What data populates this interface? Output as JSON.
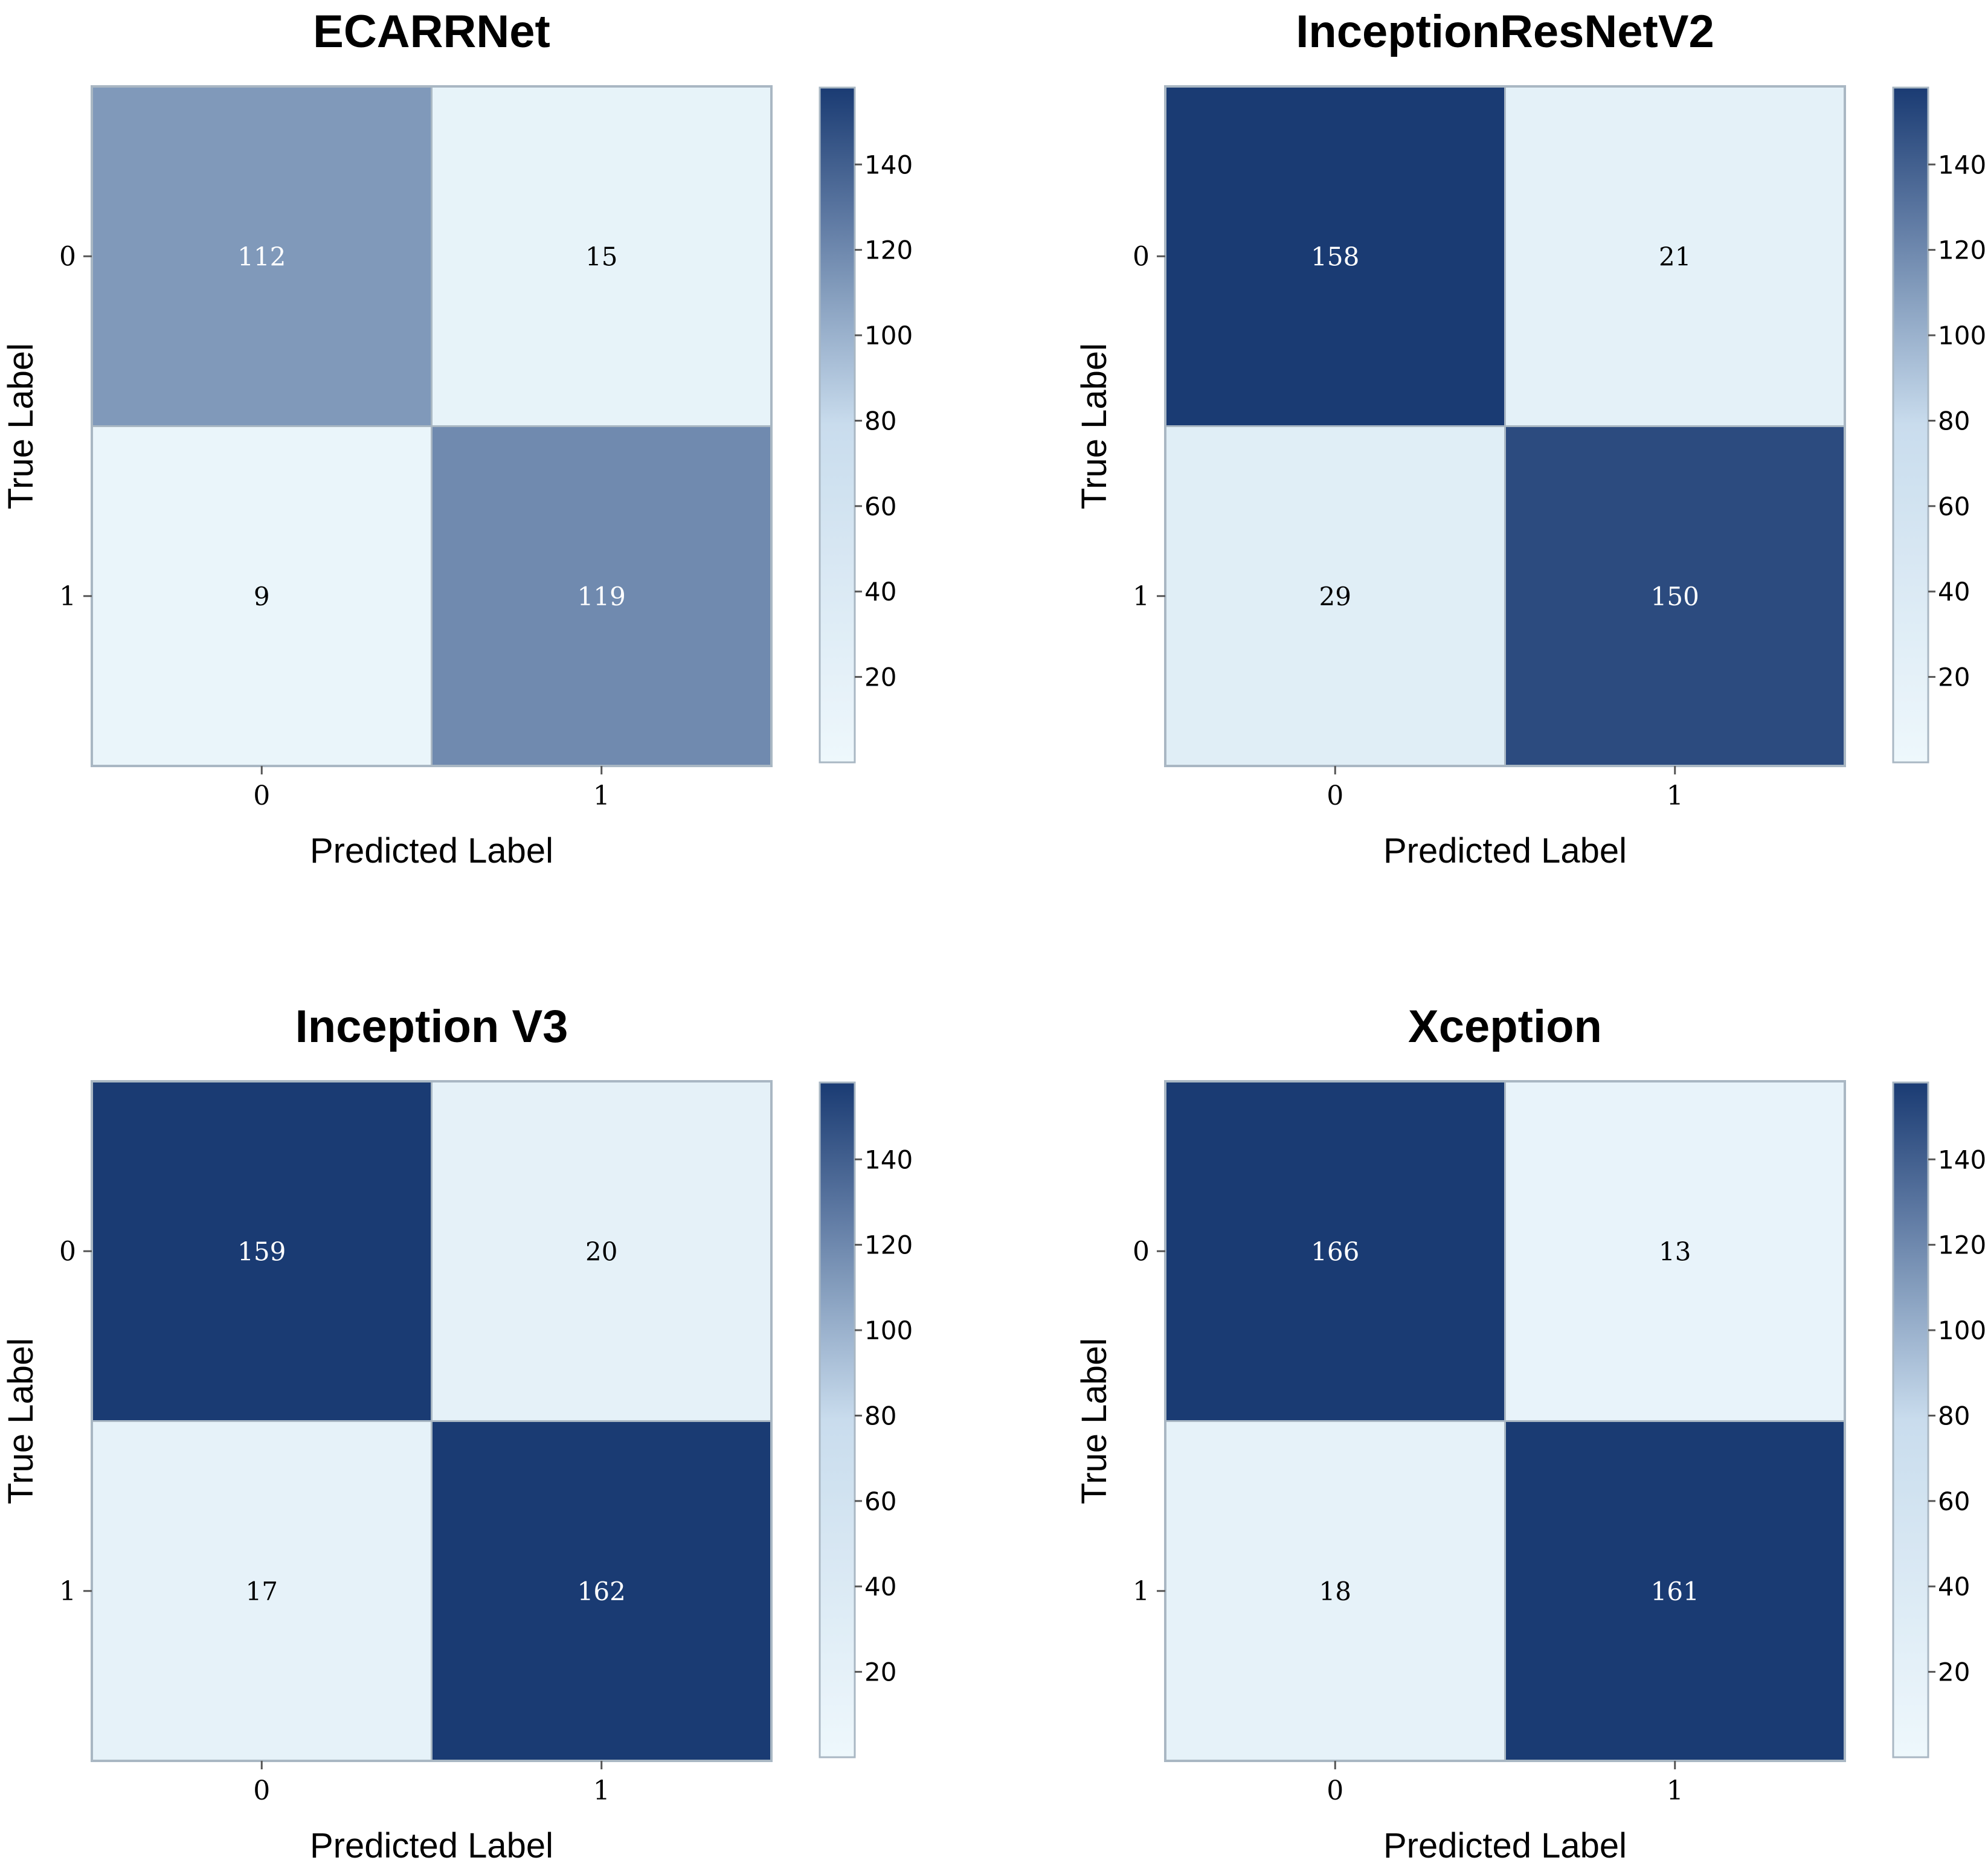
{
  "chart_data": [
    {
      "type": "heatmap",
      "title": "ECARRNet",
      "xlabel": "Predicted Label",
      "ylabel": "True Label",
      "x_categories": [
        "0",
        "1"
      ],
      "y_categories": [
        "0",
        "1"
      ],
      "matrix": [
        [
          112,
          15
        ],
        [
          9,
          119
        ]
      ],
      "colorbar": {
        "range": [
          0,
          158
        ],
        "ticks": [
          20,
          40,
          60,
          80,
          100,
          120,
          140
        ]
      }
    },
    {
      "type": "heatmap",
      "title": "InceptionResNetV2",
      "xlabel": "Predicted Label",
      "ylabel": "True Label",
      "x_categories": [
        "0",
        "1"
      ],
      "y_categories": [
        "0",
        "1"
      ],
      "matrix": [
        [
          158,
          21
        ],
        [
          29,
          150
        ]
      ],
      "colorbar": {
        "range": [
          0,
          158
        ],
        "ticks": [
          20,
          40,
          60,
          80,
          100,
          120,
          140
        ]
      }
    },
    {
      "type": "heatmap",
      "title": "Inception V3",
      "xlabel": "Predicted Label",
      "ylabel": "True Label",
      "x_categories": [
        "0",
        "1"
      ],
      "y_categories": [
        "0",
        "1"
      ],
      "matrix": [
        [
          159,
          20
        ],
        [
          17,
          162
        ]
      ],
      "colorbar": {
        "range": [
          0,
          158
        ],
        "ticks": [
          20,
          40,
          60,
          80,
          100,
          120,
          140
        ]
      }
    },
    {
      "type": "heatmap",
      "title": "Xception",
      "xlabel": "Predicted Label",
      "ylabel": "True Label",
      "x_categories": [
        "0",
        "1"
      ],
      "y_categories": [
        "0",
        "1"
      ],
      "matrix": [
        [
          166,
          13
        ],
        [
          18,
          161
        ]
      ],
      "colorbar": {
        "range": [
          0,
          158
        ],
        "ticks": [
          20,
          40,
          60,
          80,
          100,
          120,
          140
        ]
      }
    }
  ],
  "colors": {
    "low": "#eef8fc",
    "mid": "#c9dced",
    "high": "#1a3b73",
    "frame": "#a9b7c3",
    "text_on_dark": "#ffffff",
    "text_on_light": "#000000"
  }
}
